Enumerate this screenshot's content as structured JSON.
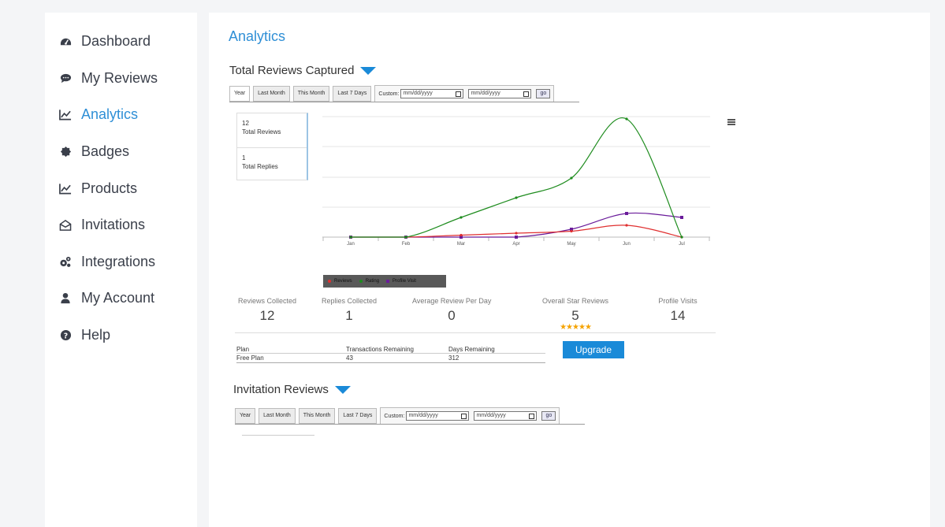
{
  "sidebar": {
    "items": [
      {
        "label": "Dashboard",
        "icon": "dashboard-icon",
        "active": false
      },
      {
        "label": "My Reviews",
        "icon": "chat-bubble-icon",
        "active": false
      },
      {
        "label": "Analytics",
        "icon": "line-chart-icon",
        "active": true
      },
      {
        "label": "Badges",
        "icon": "badge-icon",
        "active": false
      },
      {
        "label": "Products",
        "icon": "line-chart-icon",
        "active": false
      },
      {
        "label": "Invitations",
        "icon": "envelope-open-icon",
        "active": false
      },
      {
        "label": "Integrations",
        "icon": "gears-icon",
        "active": false
      },
      {
        "label": "My Account",
        "icon": "user-icon",
        "active": false
      },
      {
        "label": "Help",
        "icon": "question-circle-icon",
        "active": false
      }
    ]
  },
  "main": {
    "title": "Analytics",
    "reviews_section": {
      "title": "Total Reviews Captured",
      "filters": {
        "year": "Year",
        "last_month": "Last Month",
        "this_month": "This Month",
        "last_7_days": "Last 7 Days",
        "custom_label": "Custom:",
        "date_placeholder": "mm/dd/yyyy",
        "go": "go"
      },
      "totals": {
        "reviews_count": "12",
        "reviews_label": "Total Reviews",
        "replies_count": "1",
        "replies_label": "Total Replies"
      }
    },
    "metrics": {
      "reviews_collected": {
        "label": "Reviews Collected",
        "value": "12"
      },
      "replies_collected": {
        "label": "Replies Collected",
        "value": "1"
      },
      "avg_review_per_day": {
        "label": "Average Review Per Day",
        "value": "0"
      },
      "overall_star": {
        "label": "Overall Star Reviews",
        "value": "5",
        "stars": 5,
        "star_color": "#f5a300"
      },
      "profile_visits": {
        "label": "Profile Visits",
        "value": "14"
      }
    },
    "plan": {
      "headers": [
        "Plan",
        "Transactions Remaining",
        "Days Remaining"
      ],
      "values": [
        "Free Plan",
        "43",
        "312"
      ],
      "upgrade_label": "Upgrade"
    },
    "invitation_section": {
      "title": "Invitation Reviews",
      "filters": {
        "year": "Year",
        "last_month": "Last Month",
        "this_month": "This Month",
        "last_7_days": "Last 7 Days",
        "custom_label": "Custom:",
        "date_placeholder": "mm/dd/yyyy",
        "go": "go"
      }
    }
  },
  "chart_data": {
    "type": "line",
    "categories": [
      "Jan",
      "Feb",
      "Mar",
      "Apr",
      "May",
      "Jun",
      "Jul"
    ],
    "series": [
      {
        "name": "Reviews",
        "color": "#e03030",
        "values": [
          0,
          0,
          0.5,
          1,
          1.5,
          3,
          0
        ]
      },
      {
        "name": "Rating",
        "color": "#1e8c1e",
        "values": [
          0,
          0,
          5,
          10,
          15,
          30,
          0
        ]
      },
      {
        "name": "Profile Visit",
        "color": "#6a1b9a",
        "values": [
          0,
          0,
          0,
          0,
          2,
          6,
          5
        ]
      }
    ],
    "ylim": [
      0,
      30
    ],
    "legend_position": "bottom-left",
    "grid": true
  },
  "colors": {
    "accent": "#2f8fd6",
    "button": "#1a8ad8"
  }
}
